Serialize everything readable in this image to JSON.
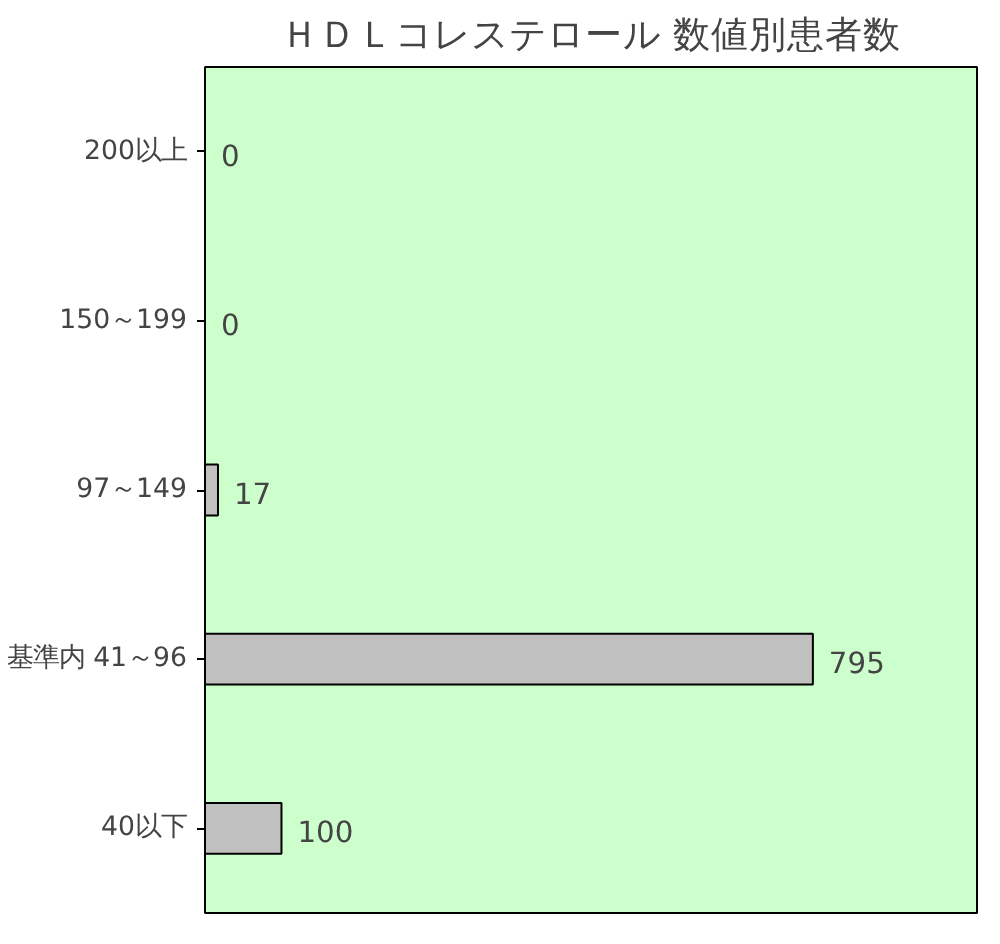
{
  "chart_data": {
    "type": "bar",
    "orientation": "horizontal",
    "title": "ＨＤＬコレステロール 数値別患者数",
    "categories": [
      "200以上",
      "150～199",
      "97～149",
      "基準内 41～96",
      "40以下"
    ],
    "values": [
      0,
      0,
      17,
      795,
      100
    ],
    "color": "#c0c0c0",
    "data_labels": true,
    "tick_labels": "y",
    "grid": false
  }
}
